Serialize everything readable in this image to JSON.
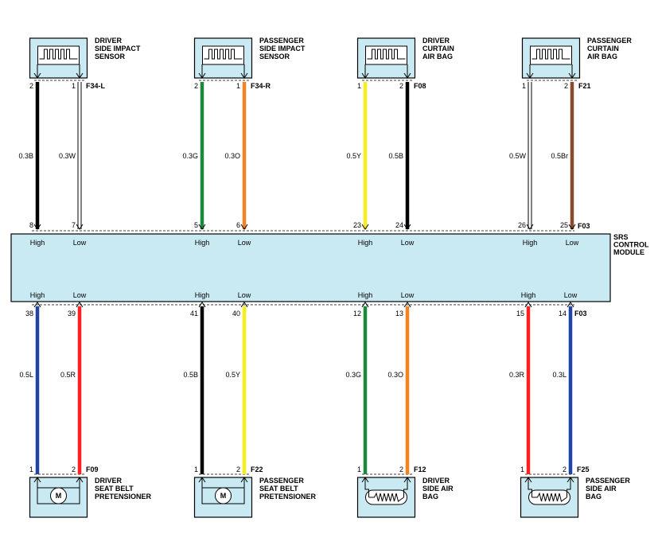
{
  "module": {
    "name_lines": [
      "SRS",
      "CONTROL",
      "MODULE"
    ],
    "top_connector": "F03",
    "bottom_connector": "F03"
  },
  "top_components": [
    {
      "id": "driver-side-impact-sensor",
      "name_lines": [
        "DRIVER",
        "SIDE IMPACT",
        "SENSOR"
      ],
      "connector": "F34-L",
      "symbol": "sensor",
      "wires": [
        {
          "comp_pin": "2",
          "module_pin": "8",
          "label": "0.3B",
          "color": "#000000",
          "module_label": "High"
        },
        {
          "comp_pin": "1",
          "module_pin": "7",
          "label": "0.3W",
          "color": "#ffffff",
          "module_label": "Low"
        }
      ]
    },
    {
      "id": "passenger-side-impact-sensor",
      "name_lines": [
        "PASSENGER",
        "SIDE IMPACT",
        "SENSOR"
      ],
      "connector": "F34-R",
      "symbol": "sensor",
      "wires": [
        {
          "comp_pin": "2",
          "module_pin": "5",
          "label": "0.3G",
          "color": "#1a8a3a",
          "module_label": "High"
        },
        {
          "comp_pin": "1",
          "module_pin": "6",
          "label": "0.3O",
          "color": "#f58220",
          "module_label": "Low"
        }
      ]
    },
    {
      "id": "driver-curtain-air-bag",
      "name_lines": [
        "DRIVER",
        "CURTAIN",
        "AIR BAG"
      ],
      "connector": "F08",
      "symbol": "sensor",
      "wires": [
        {
          "comp_pin": "1",
          "module_pin": "23",
          "label": "0.5Y",
          "color": "#f7ee1a",
          "module_label": "High"
        },
        {
          "comp_pin": "2",
          "module_pin": "24",
          "label": "0.5B",
          "color": "#000000",
          "module_label": "Low"
        }
      ]
    },
    {
      "id": "passenger-curtain-air-bag",
      "name_lines": [
        "PASSENGER",
        "CURTAIN",
        "AIR BAG"
      ],
      "connector": "F21",
      "symbol": "sensor",
      "wires": [
        {
          "comp_pin": "1",
          "module_pin": "26",
          "label": "0.5W",
          "color": "#ffffff",
          "module_label": "High"
        },
        {
          "comp_pin": "2",
          "module_pin": "25",
          "label": "0.5Br",
          "color": "#8b4a2b",
          "module_label": "Low"
        }
      ]
    }
  ],
  "bottom_components": [
    {
      "id": "driver-seat-belt-pretensioner",
      "name_lines": [
        "DRIVER",
        "SEAT BELT",
        "PRETENSIONER"
      ],
      "connector": "F09",
      "symbol": "motor",
      "symbol_text": "M",
      "wires": [
        {
          "comp_pin": "1",
          "module_pin": "38",
          "label": "0.5L",
          "color": "#1f44a6",
          "module_label": "High"
        },
        {
          "comp_pin": "2",
          "module_pin": "39",
          "label": "0.5R",
          "color": "#ff2020",
          "module_label": "Low"
        }
      ]
    },
    {
      "id": "passenger-seat-belt-pretensioner",
      "name_lines": [
        "PASSENGER",
        "SEAT BELT",
        "PRETENSIONER"
      ],
      "connector": "F22",
      "symbol": "motor",
      "symbol_text": "M",
      "wires": [
        {
          "comp_pin": "1",
          "module_pin": "41",
          "label": "0.5B",
          "color": "#000000",
          "module_label": "High"
        },
        {
          "comp_pin": "2",
          "module_pin": "40",
          "label": "0.5Y",
          "color": "#f7ee1a",
          "module_label": "Low"
        }
      ]
    },
    {
      "id": "driver-side-air-bag",
      "name_lines": [
        "DRIVER",
        "SIDE AIR",
        "BAG"
      ],
      "connector": "F12",
      "symbol": "resistor",
      "wires": [
        {
          "comp_pin": "1",
          "module_pin": "12",
          "label": "0.3G",
          "color": "#1a8a3a",
          "module_label": "High"
        },
        {
          "comp_pin": "2",
          "module_pin": "13",
          "label": "0.3O",
          "color": "#f58220",
          "module_label": "Low"
        }
      ]
    },
    {
      "id": "passenger-side-air-bag",
      "name_lines": [
        "PASSENGER",
        "SIDE AIR",
        "BAG"
      ],
      "connector": "F25",
      "symbol": "resistor",
      "wires": [
        {
          "comp_pin": "1",
          "module_pin": "15",
          "label": "0.3R",
          "color": "#ff2020",
          "module_label": "High"
        },
        {
          "comp_pin": "2",
          "module_pin": "14",
          "label": "0.3L",
          "color": "#1f44a6",
          "module_label": "Low"
        }
      ]
    }
  ]
}
